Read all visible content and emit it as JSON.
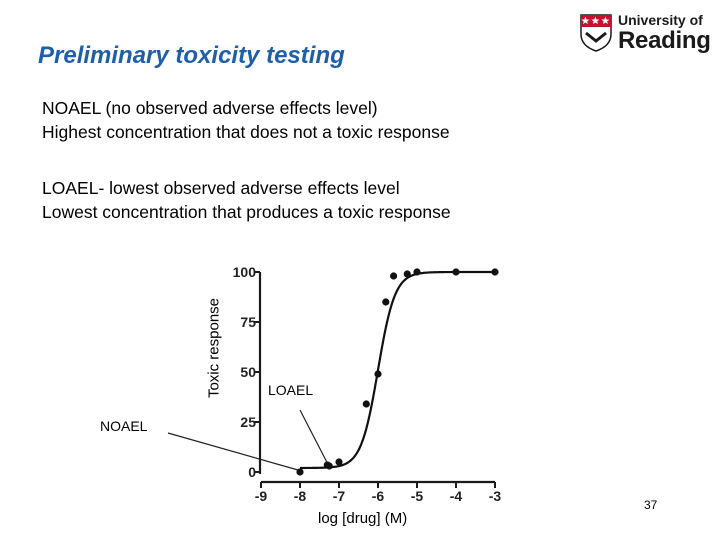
{
  "slide": {
    "title": "Preliminary toxicity testing",
    "noael_heading": "NOAEL",
    "noael_heading_rest": " (no observed adverse effects level)",
    "noael_desc": "Highest concentration that does not a toxic response",
    "loael_heading": "LOAEL",
    "loael_heading_rest": "- lowest observed adverse effects level",
    "loael_desc": "Lowest concentration that produces a toxic response",
    "page_number": "37",
    "accent_color": "#1f5fa8"
  },
  "logo": {
    "line1": "University of",
    "line2": "Reading",
    "shield_color": "#c8102e"
  },
  "chart_data": {
    "type": "scatter",
    "xlabel": "log [drug] (M)",
    "ylabel": "Toxic response",
    "xlim": [
      -9,
      -3
    ],
    "ylim": [
      0,
      100
    ],
    "xticks": [
      -9,
      -8,
      -7,
      -6,
      -5,
      -4,
      -3
    ],
    "yticks": [
      0,
      25,
      50,
      75,
      100
    ],
    "points": [
      {
        "x": -8.0,
        "y": 0
      },
      {
        "x": -7.0,
        "y": 5
      },
      {
        "x": -6.3,
        "y": 34
      },
      {
        "x": -6.0,
        "y": 49
      },
      {
        "x": -5.8,
        "y": 85
      },
      {
        "x": -5.6,
        "y": 98
      },
      {
        "x": -5.0,
        "y": 100
      },
      {
        "x": -4.0,
        "y": 100
      },
      {
        "x": -3.0,
        "y": 100
      },
      {
        "x": -7.3,
        "y": 3.5
      },
      {
        "x": -7.25,
        "y": 3
      },
      {
        "x": -5.25,
        "y": 99
      }
    ],
    "fit_curve": {
      "bottom": 2,
      "top": 100,
      "log_ec50": -6.0,
      "hill_slope": 2.0
    },
    "annotations": [
      {
        "label": "NOAEL",
        "x": -8.0,
        "y": 0
      },
      {
        "label": "LOAEL",
        "x": -7.3,
        "y": 3.5
      }
    ]
  }
}
